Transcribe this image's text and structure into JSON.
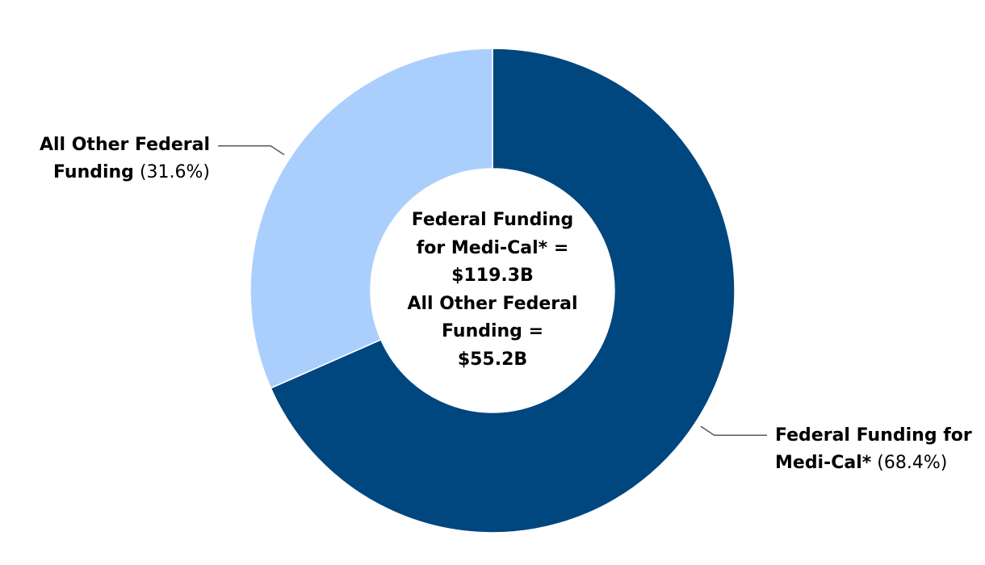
{
  "chart_data": {
    "type": "pie",
    "style": "donut",
    "slices": [
      {
        "name_line1": "Federal Funding for",
        "name_line2": "Medi-Cal*",
        "percent_label": "(68.4%)",
        "value": 68.4,
        "color": "#00467f"
      },
      {
        "name_line1": "All Other Federal",
        "name_line2": "Funding",
        "percent_label": "(31.6%)",
        "value": 31.6,
        "color": "#abcffd"
      }
    ],
    "center_lines": [
      "Federal Funding",
      "for Medi-Cal* =",
      "$119.3B",
      "All Other Federal",
      "Funding =",
      "$55.2B"
    ]
  }
}
